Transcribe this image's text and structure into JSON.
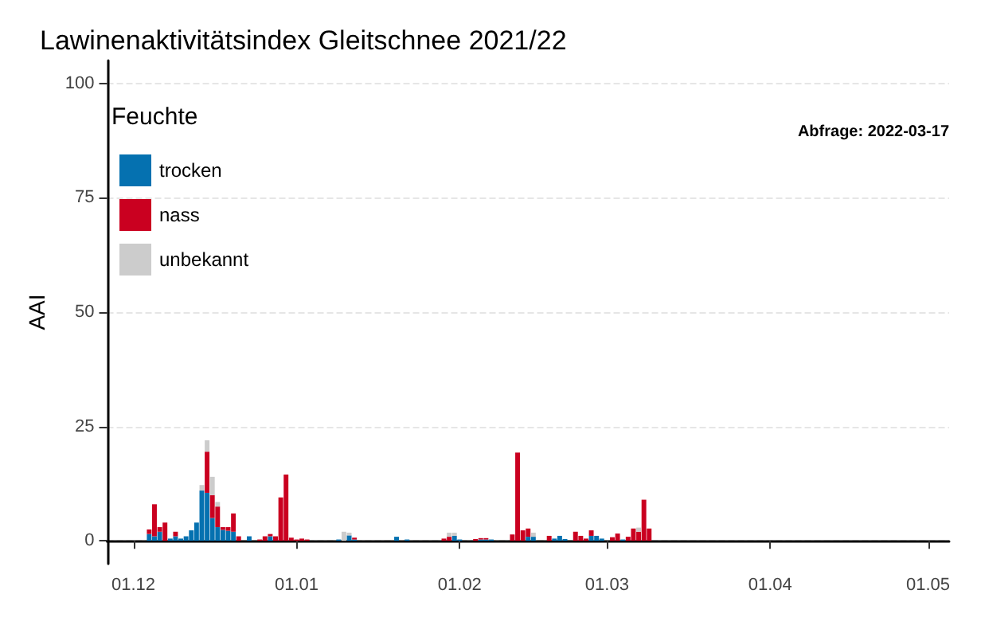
{
  "chart_data": {
    "type": "bar",
    "title": "Lawinenaktivitätsindex Gleitschnee 2021/22",
    "ylabel": "AAI",
    "legend_title": "Feuchte",
    "legend": "top left",
    "stacked": true,
    "grid": "y",
    "annotations": [
      "Abfrage: 2022-03-17"
    ],
    "xlim": [
      "2021-11-26",
      "2022-05-05"
    ],
    "xticks": [
      {
        "value": "2021-12-01",
        "label": "01.12"
      },
      {
        "value": "2022-01-01",
        "label": "01.01"
      },
      {
        "value": "2022-02-01",
        "label": "01.02"
      },
      {
        "value": "2022-03-01",
        "label": "01.03"
      },
      {
        "value": "2022-04-01",
        "label": "01.04"
      },
      {
        "value": "2022-05-01",
        "label": "01.05"
      }
    ],
    "ylim": [
      -5,
      105
    ],
    "yticks": [
      0,
      25,
      50,
      75,
      100
    ],
    "x": [
      "2021-12-04",
      "2021-12-05",
      "2021-12-06",
      "2021-12-07",
      "2021-12-08",
      "2021-12-09",
      "2021-12-10",
      "2021-12-11",
      "2021-12-12",
      "2021-12-13",
      "2021-12-14",
      "2021-12-15",
      "2021-12-16",
      "2021-12-17",
      "2021-12-18",
      "2021-12-19",
      "2021-12-20",
      "2021-12-21",
      "2021-12-23",
      "2021-12-25",
      "2021-12-26",
      "2021-12-27",
      "2021-12-28",
      "2021-12-29",
      "2021-12-30",
      "2021-12-31",
      "2022-01-01",
      "2022-01-02",
      "2022-01-03",
      "2022-01-09",
      "2022-01-10",
      "2022-01-11",
      "2022-01-12",
      "2022-01-20",
      "2022-01-22",
      "2022-01-29",
      "2022-01-30",
      "2022-01-31",
      "2022-02-01",
      "2022-02-04",
      "2022-02-05",
      "2022-02-06",
      "2022-02-07",
      "2022-02-11",
      "2022-02-12",
      "2022-02-13",
      "2022-02-14",
      "2022-02-15",
      "2022-02-18",
      "2022-02-19",
      "2022-02-20",
      "2022-02-21",
      "2022-02-23",
      "2022-02-24",
      "2022-02-25",
      "2022-02-26",
      "2022-02-27",
      "2022-02-28",
      "2022-03-02",
      "2022-03-03",
      "2022-03-04",
      "2022-03-05",
      "2022-03-06",
      "2022-03-07",
      "2022-03-08",
      "2022-03-09"
    ],
    "series": [
      {
        "name": "trocken",
        "color": "#0571b0",
        "values": [
          1.5,
          1,
          2,
          null,
          0.5,
          1,
          0.5,
          1,
          2.3,
          4,
          11,
          10.5,
          5,
          3,
          2.4,
          2.2,
          2,
          null,
          1,
          null,
          null,
          1,
          null,
          null,
          null,
          null,
          null,
          null,
          null,
          0.3,
          null,
          1.2,
          0.3,
          0.9,
          0.3,
          null,
          null,
          1.1,
          0.3,
          null,
          0.3,
          0.3,
          0.3,
          null,
          null,
          null,
          0.9,
          0.9,
          null,
          0.5,
          1.1,
          0.4,
          null,
          null,
          null,
          1.1,
          1.1,
          0.5,
          null,
          null,
          0.3,
          null,
          null,
          null,
          null,
          null
        ]
      },
      {
        "name": "nass",
        "color": "#ca0020",
        "values": [
          1,
          7,
          1,
          4,
          null,
          1,
          null,
          null,
          null,
          null,
          null,
          9,
          5,
          4.5,
          0.6,
          0.8,
          4,
          1,
          null,
          0.3,
          1,
          0.5,
          1,
          9.5,
          14.5,
          0.7,
          0.3,
          0.5,
          0.3,
          null,
          null,
          null,
          0.4,
          null,
          null,
          0.5,
          0.9,
          null,
          null,
          0.4,
          0.3,
          0.3,
          null,
          1.4,
          19.3,
          2.3,
          1.8,
          null,
          1.1,
          null,
          null,
          null,
          2,
          1.1,
          0.5,
          1.2,
          null,
          null,
          0.8,
          1.6,
          null,
          0.9,
          2.7,
          2,
          9,
          2.7
        ]
      },
      {
        "name": "unbekannt",
        "color": "#cccccc",
        "values": [
          null,
          null,
          null,
          null,
          null,
          null,
          null,
          null,
          null,
          null,
          1.2,
          2.5,
          4,
          1,
          null,
          null,
          null,
          null,
          null,
          null,
          null,
          null,
          null,
          null,
          null,
          null,
          null,
          null,
          null,
          null,
          2,
          0.6,
          null,
          null,
          null,
          null,
          0.9,
          0.7,
          null,
          null,
          null,
          null,
          null,
          null,
          null,
          null,
          null,
          0.9,
          null,
          null,
          null,
          null,
          null,
          null,
          null,
          null,
          null,
          null,
          null,
          null,
          null,
          null,
          null,
          0.9,
          null,
          null
        ]
      }
    ]
  }
}
